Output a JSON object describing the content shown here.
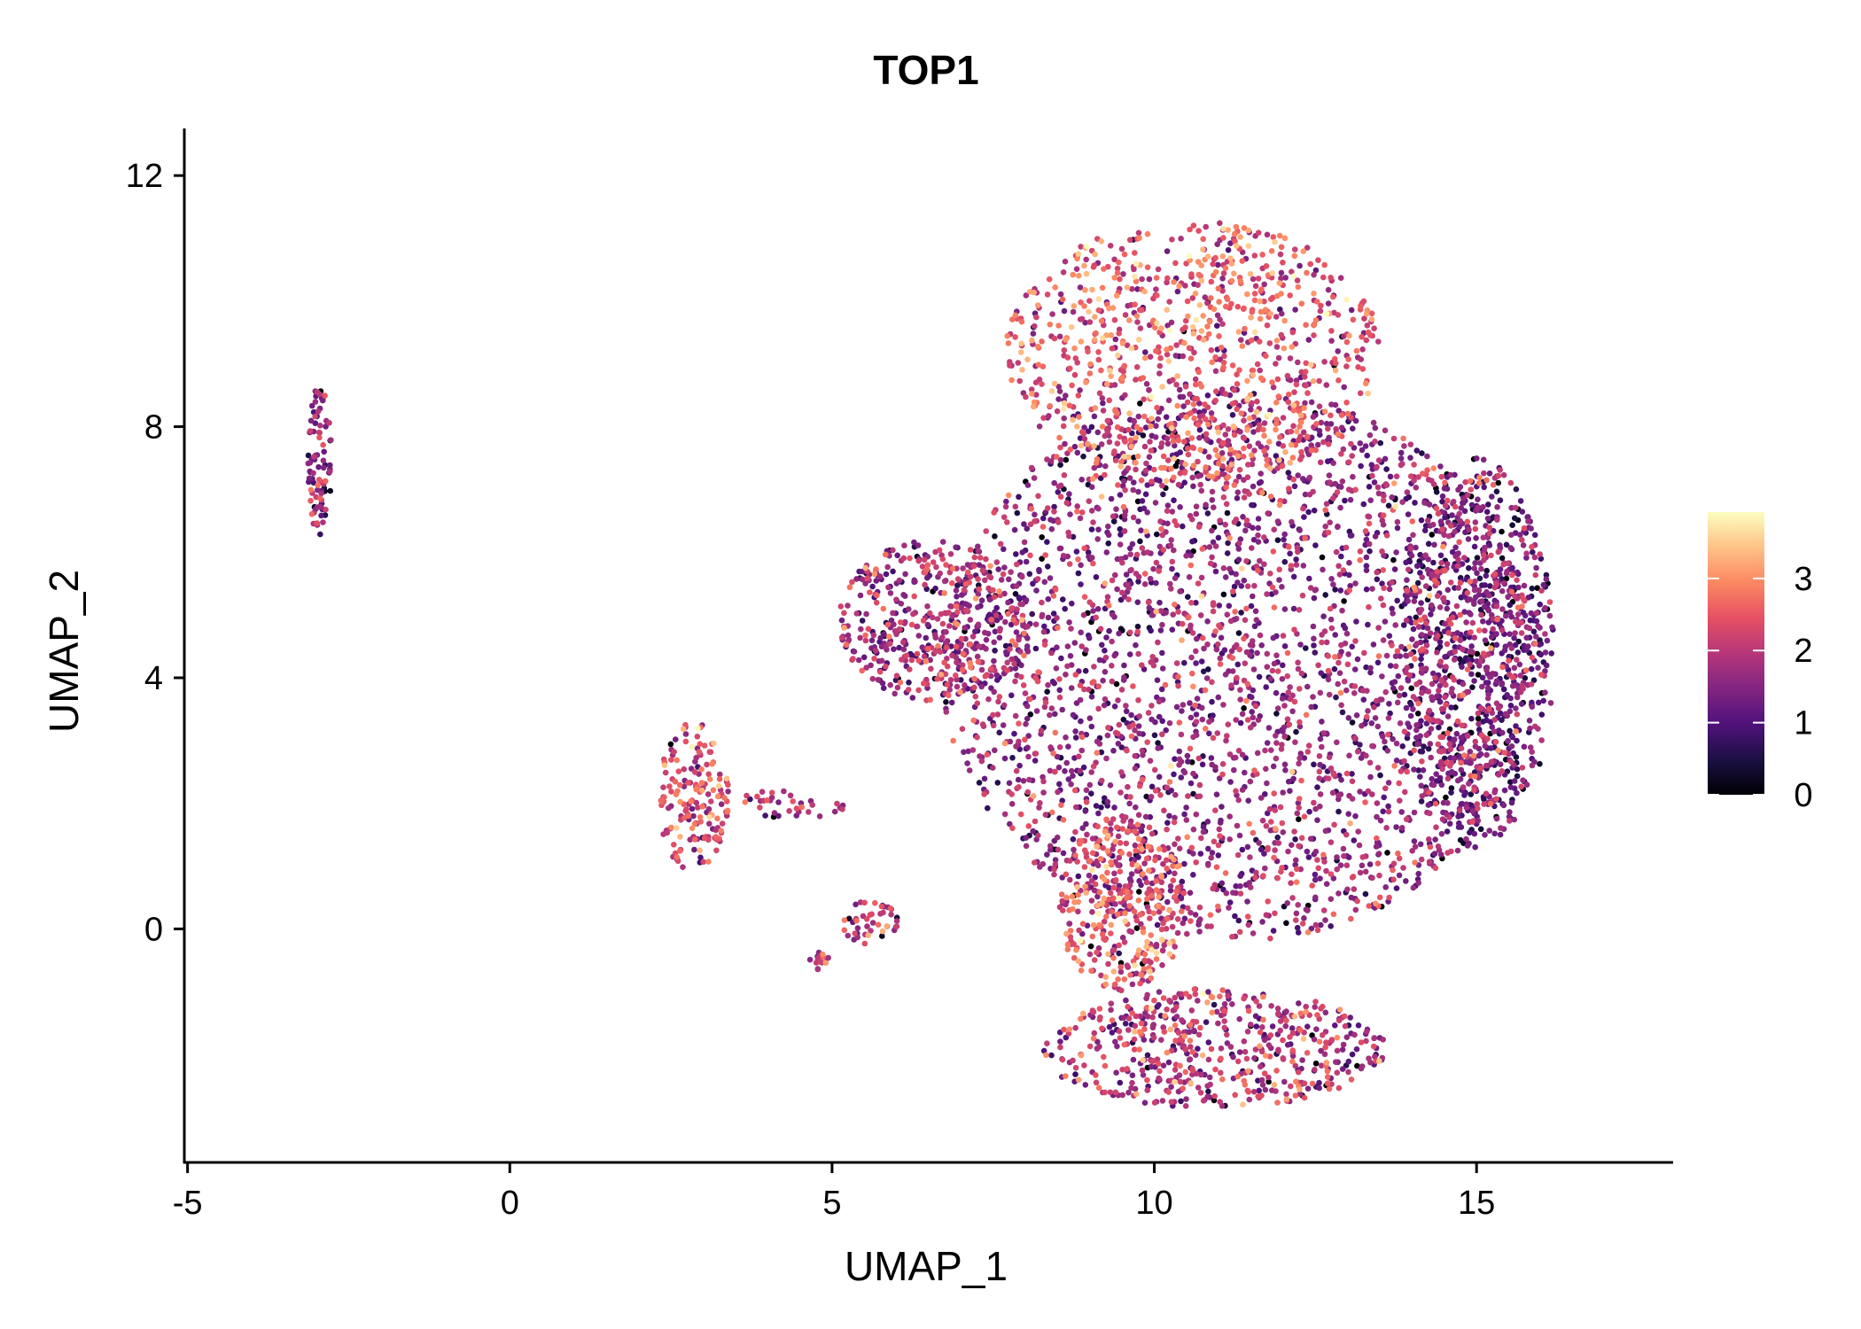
{
  "chart_data": {
    "type": "scatter",
    "title": "TOP1",
    "xlabel": "UMAP_1",
    "ylabel": "UMAP_2",
    "xlim": [
      -5.05,
      18.05
    ],
    "ylim": [
      -3.72,
      12.75
    ],
    "xticks": [
      -5,
      0,
      5,
      10,
      15
    ],
    "xtick_labels": [
      "-5",
      "0",
      "5",
      "10",
      "15"
    ],
    "yticks": [
      0,
      4,
      8,
      12
    ],
    "ytick_labels": [
      "0",
      "4",
      "8",
      "12"
    ],
    "grid": false,
    "color_scale": {
      "name": "magma",
      "range": [
        0,
        3.92
      ],
      "ticks": [
        0,
        1,
        2,
        3
      ],
      "tick_labels": [
        "0",
        "1",
        "2",
        "3"
      ],
      "stops": [
        "#000004",
        "#1c1044",
        "#4f127b",
        "#812581",
        "#b5367a",
        "#e55064",
        "#fb8761",
        "#fec287",
        "#fcfdbf"
      ],
      "legend_position": "right"
    },
    "point_regions_note_values_in_data_units": true,
    "clusters": [
      {
        "name": "far-left strip",
        "cx": -2.95,
        "cy": 7.45,
        "rx": 0.18,
        "ry": 1.25,
        "n": 90,
        "mean_expr": 1.6
      },
      {
        "name": "small left cluster",
        "cx": 2.85,
        "cy": 2.1,
        "rx": 0.55,
        "ry": 1.2,
        "n": 170,
        "mean_expr": 2.3
      },
      {
        "name": "trail",
        "cx": 4.4,
        "cy": 2.0,
        "rx": 0.9,
        "ry": 0.25,
        "n": 35,
        "mean_expr": 1.7
      },
      {
        "name": "small cluster bottom",
        "cx": 5.6,
        "cy": 0.1,
        "rx": 0.45,
        "ry": 0.35,
        "n": 45,
        "mean_expr": 2.0
      },
      {
        "name": "tiny cluster",
        "cx": 4.8,
        "cy": -0.5,
        "rx": 0.15,
        "ry": 0.15,
        "n": 15,
        "mean_expr": 2.2
      },
      {
        "name": "main body",
        "cx": 11.3,
        "cy": 4.2,
        "rx": 4.6,
        "ry": 4.4,
        "n": 2900,
        "mean_expr": 1.6
      },
      {
        "name": "main top",
        "cx": 10.6,
        "cy": 9.2,
        "rx": 2.9,
        "ry": 2.1,
        "n": 900,
        "mean_expr": 2.4
      },
      {
        "name": "main left lobe",
        "cx": 6.6,
        "cy": 4.9,
        "rx": 1.5,
        "ry": 1.3,
        "n": 450,
        "mean_expr": 1.7
      },
      {
        "name": "main right",
        "cx": 15.0,
        "cy": 4.4,
        "rx": 1.2,
        "ry": 3.1,
        "n": 750,
        "mean_expr": 1.25
      },
      {
        "name": "main bottom",
        "cx": 10.9,
        "cy": -1.9,
        "rx": 2.7,
        "ry": 0.95,
        "n": 550,
        "mean_expr": 1.9
      },
      {
        "name": "main lower-mid",
        "cx": 9.5,
        "cy": 0.4,
        "rx": 1.0,
        "ry": 1.4,
        "n": 350,
        "mean_expr": 2.4
      }
    ]
  }
}
